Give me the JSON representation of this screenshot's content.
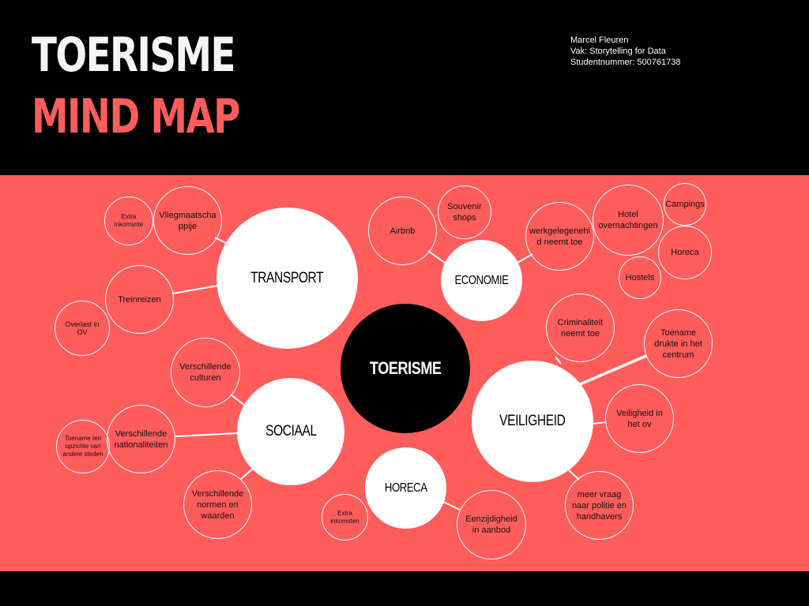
{
  "header": {
    "title_line1": "TOERISME",
    "title_line2": "MIND MAP",
    "author": "Marcel Fleuren",
    "course": "Vak: Storytelling for Data",
    "student_number": "Studentnummer: 500761738"
  },
  "colors": {
    "background": "#000000",
    "band": "#ff5c5c",
    "accent": "#ff5c5c",
    "node": "#ffffff"
  },
  "mindmap": {
    "center": "TOERISME",
    "transport": {
      "label": "TRANSPORT",
      "flight": "Vliegmaatschappije",
      "flight_extra": "Extra inkomsnte",
      "train": "Treinreizen",
      "train_nuisance": "Overlast in OV"
    },
    "economie": {
      "label": "ECONOMIE",
      "airbnb": "Airbnb",
      "souvenir": "Souvenir shops",
      "employment": "werkgelegenehid neemt toe",
      "hotel": "Hotel overnachtingen",
      "campings": "Campings",
      "horeca": "Horeca",
      "hostels": "Hostels"
    },
    "sociaal": {
      "label": "SOCIAAL",
      "cultures": "Verschillende culturen",
      "nationalities": "Verschillende nationaliteiten",
      "opinion": "Toename ten opzichte van andere steden",
      "norms": "Verschillende normen en waarden"
    },
    "veiligheid": {
      "label": "VEILIGHEID",
      "crime": "Criminaliteit neemt toe",
      "crowds": "Toename drukte in het centrum",
      "ov_safety": "Veiligheid in het ov",
      "police": "meer vraag naar politie en handhavers"
    },
    "horeca": {
      "label": "HORECA",
      "extra": "Extra inkomsten",
      "uniform": "Eenzijdigheid in aanbod"
    }
  }
}
